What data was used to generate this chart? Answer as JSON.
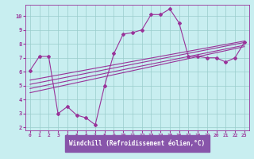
{
  "xlabel": "Windchill (Refroidissement éolien,°C)",
  "bg_color": "#c8eef0",
  "line_color": "#993399",
  "grid_color": "#99cccc",
  "xlabel_bg": "#8855aa",
  "xlim": [
    -0.5,
    23.5
  ],
  "ylim": [
    1.8,
    10.8
  ],
  "xticks": [
    0,
    1,
    2,
    3,
    4,
    5,
    6,
    7,
    8,
    9,
    10,
    11,
    12,
    13,
    14,
    15,
    16,
    17,
    18,
    19,
    20,
    21,
    22,
    23
  ],
  "yticks": [
    2,
    3,
    4,
    5,
    6,
    7,
    8,
    9,
    10
  ],
  "series1_x": [
    0,
    1,
    2,
    3,
    4,
    5,
    6,
    7,
    8,
    9,
    10,
    11,
    12,
    13,
    14,
    15,
    16,
    17,
    18,
    19,
    20,
    21,
    22,
    23
  ],
  "series1_y": [
    6.1,
    7.1,
    7.1,
    3.0,
    3.5,
    2.9,
    2.7,
    2.2,
    5.0,
    7.3,
    8.7,
    8.8,
    9.0,
    10.1,
    10.1,
    10.5,
    9.5,
    7.1,
    7.1,
    7.0,
    7.0,
    6.7,
    7.0,
    8.1
  ],
  "series2_x": [
    0,
    23
  ],
  "series2_y": [
    4.5,
    7.8
  ],
  "series3_x": [
    0,
    23
  ],
  "series3_y": [
    4.8,
    7.9
  ],
  "series4_x": [
    0,
    23
  ],
  "series4_y": [
    5.1,
    8.1
  ],
  "series5_x": [
    0,
    23
  ],
  "series5_y": [
    5.4,
    8.2
  ]
}
